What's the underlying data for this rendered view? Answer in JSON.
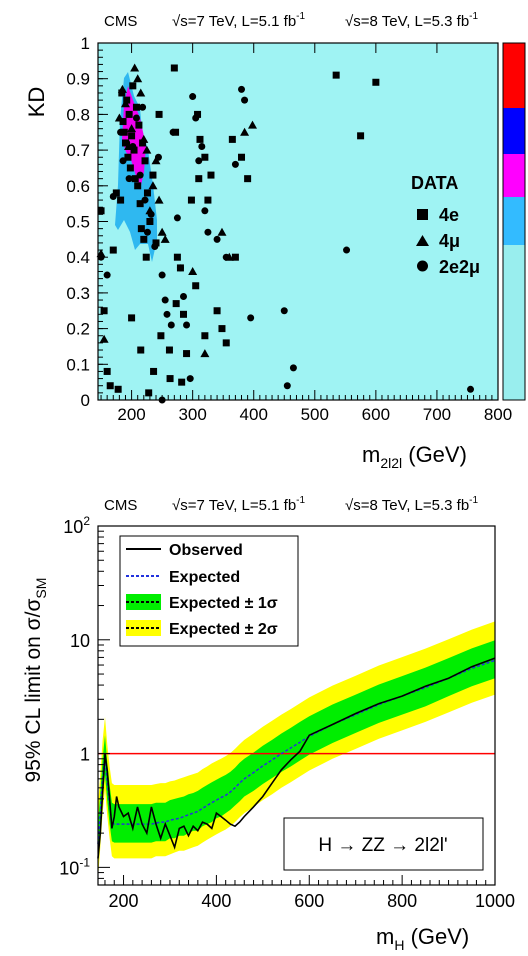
{
  "charts": [
    {
      "header": {
        "experiment": "CMS",
        "sqrt_s_7": "√s=7 TeV, L=5.1 fb",
        "sup_7": "-1",
        "sqrt_s_8": "√s=8 TeV, L=5.3 fb",
        "sup_8": "-1"
      },
      "ylabel": "KD",
      "xlabel_main": "m",
      "xlabel_sub": "2l2l",
      "xlabel_unit": " (GeV)",
      "x_ticks": [
        "200",
        "300",
        "400",
        "500",
        "600",
        "700",
        "800"
      ],
      "y_ticks": [
        "0",
        "0.1",
        "0.2",
        "0.3",
        "0.4",
        "0.5",
        "0.6",
        "0.7",
        "0.8",
        "0.9",
        "1"
      ],
      "legend_title": "DATA",
      "legend_items": [
        {
          "label": "4e",
          "marker": "square"
        },
        {
          "label": "4μ",
          "marker": "triangle"
        },
        {
          "label": "2e2μ",
          "marker": "circle"
        }
      ],
      "colors": {
        "background": "#9FF3F3",
        "band_outer": "#2FB8F0",
        "band_inner": "#F000F0",
        "colorbar": [
          "#FF0000",
          "#0000FF",
          "#FF00FF",
          "#33BBFF",
          "#99EEEE"
        ]
      }
    },
    {
      "header": {
        "experiment": "CMS",
        "sqrt_s_7": "√s=7 TeV, L=5.1 fb",
        "sup_7": "-1",
        "sqrt_s_8": "√s=8 TeV, L=5.3 fb",
        "sup_8": "-1"
      },
      "ylabel_main": "95% CL limit on σ/σ",
      "ylabel_sub": "SM",
      "xlabel_main": "m",
      "xlabel_sub": "H",
      "xlabel_unit": " (GeV)",
      "x_ticks": [
        "200",
        "400",
        "600",
        "800",
        "1000"
      ],
      "y_ticks": [
        {
          "base": "10",
          "exp": "-1"
        },
        {
          "base": "1",
          "exp": ""
        },
        {
          "base": "10",
          "exp": ""
        },
        {
          "base": "10",
          "exp": "2"
        }
      ],
      "legend_items": [
        {
          "label": "Observed",
          "style": "observed"
        },
        {
          "label": "Expected",
          "style": "expected"
        },
        {
          "label": "Expected ± 1σ",
          "style": "band1"
        },
        {
          "label": "Expected ± 2σ",
          "style": "band2"
        }
      ],
      "annotation": "H → ZZ → 2l2l'",
      "colors": {
        "observed": "#000000",
        "expected": "#2233DD",
        "band1": "#00EE00",
        "band2": "#FFFF00",
        "sm_line": "#FF0000"
      }
    }
  ],
  "chart_data": [
    {
      "type": "scatter",
      "title": "",
      "xlabel": "m_2l2l (GeV)",
      "ylabel": "KD",
      "xlim": [
        145,
        800
      ],
      "ylim": [
        0,
        1
      ],
      "grid": false,
      "legend_placement": "right",
      "series": [
        {
          "name": "4e",
          "marker": "square",
          "points": [
            [
              170,
              0.42
            ],
            [
              175,
              0.58
            ],
            [
              182,
              0.56
            ],
            [
              184,
              0.86
            ],
            [
              186,
              0.78
            ],
            [
              188,
              0.75
            ],
            [
              190,
              0.72
            ],
            [
              192,
              0.84
            ],
            [
              194,
              0.68
            ],
            [
              196,
              0.8
            ],
            [
              198,
              0.65
            ],
            [
              200,
              0.74
            ],
            [
              202,
              0.88
            ],
            [
              204,
              0.7
            ],
            [
              206,
              0.62
            ],
            [
              208,
              0.82
            ],
            [
              210,
              0.6
            ],
            [
              212,
              0.77
            ],
            [
              214,
              0.55
            ],
            [
              216,
              0.48
            ],
            [
              218,
              0.72
            ],
            [
              220,
              0.45
            ],
            [
              222,
              0.67
            ],
            [
              224,
              0.4
            ],
            [
              226,
              0.58
            ],
            [
              230,
              0.5
            ],
            [
              235,
              0.63
            ],
            [
              240,
              0.44
            ],
            [
              245,
              0.8
            ],
            [
              150,
              0.53
            ],
            [
              155,
              0.25
            ],
            [
              160,
              0.08
            ],
            [
              165,
              0.04
            ],
            [
              178,
              0.03
            ],
            [
              200,
              0.23
            ],
            [
              215,
              0.14
            ],
            [
              228,
              0.02
            ],
            [
              236,
              0.08
            ],
            [
              248,
              0.18
            ],
            [
              262,
              0.14
            ],
            [
              270,
              0.93
            ],
            [
              272,
              0.75
            ],
            [
              275,
              0.4
            ],
            [
              280,
              0.37
            ],
            [
              285,
              0.24
            ],
            [
              290,
              0.13
            ],
            [
              298,
              0.56
            ],
            [
              305,
              0.32
            ],
            [
              308,
              0.8
            ],
            [
              312,
              0.73
            ],
            [
              320,
              0.68
            ],
            [
              325,
              0.56
            ],
            [
              330,
              0.63
            ],
            [
              340,
              0.25
            ],
            [
              348,
              0.2
            ],
            [
              355,
              0.16
            ],
            [
              365,
              0.73
            ],
            [
              370,
              0.4
            ],
            [
              380,
              0.68
            ],
            [
              390,
              0.62
            ],
            [
              535,
              0.91
            ],
            [
              575,
              0.74
            ],
            [
              600,
              0.89
            ],
            [
              273,
              0.27
            ],
            [
              282,
              0.05
            ],
            [
              263,
              0.06
            ],
            [
              320,
              0.18
            ],
            [
              310,
              0.62
            ]
          ]
        },
        {
          "name": "4μ",
          "marker": "triangle",
          "points": [
            [
              150,
              0.41
            ],
            [
              155,
              0.17
            ],
            [
              180,
              0.79
            ],
            [
              185,
              0.87
            ],
            [
              190,
              0.83
            ],
            [
              195,
              0.71
            ],
            [
              200,
              0.76
            ],
            [
              205,
              0.93
            ],
            [
              210,
              0.9
            ],
            [
              215,
              0.86
            ],
            [
              220,
              0.73
            ],
            [
              225,
              0.7
            ],
            [
              230,
              0.53
            ],
            [
              235,
              0.6
            ],
            [
              240,
              0.67
            ],
            [
              245,
              0.56
            ],
            [
              250,
              0.47
            ],
            [
              255,
              0.45
            ],
            [
              300,
              0.36
            ],
            [
              320,
              0.13
            ],
            [
              348,
              0.47
            ],
            [
              360,
              0.4
            ],
            [
              385,
              0.75
            ],
            [
              398,
              0.77
            ]
          ]
        },
        {
          "name": "2e2μ",
          "marker": "circle",
          "points": [
            [
              150,
              0.4
            ],
            [
              160,
              0.35
            ],
            [
              170,
              0.57
            ],
            [
              182,
              0.75
            ],
            [
              186,
              0.67
            ],
            [
              192,
              0.72
            ],
            [
              196,
              0.62
            ],
            [
              202,
              0.71
            ],
            [
              208,
              0.79
            ],
            [
              214,
              0.63
            ],
            [
              218,
              0.82
            ],
            [
              222,
              0.56
            ],
            [
              226,
              0.47
            ],
            [
              232,
              0.52
            ],
            [
              238,
              0.43
            ],
            [
              244,
              0.68
            ],
            [
              250,
              0.35
            ],
            [
              255,
              0.28
            ],
            [
              258,
              0.24
            ],
            [
              265,
              0.21
            ],
            [
              268,
              0.75
            ],
            [
              275,
              0.51
            ],
            [
              280,
              0.37
            ],
            [
              285,
              0.29
            ],
            [
              290,
              0.21
            ],
            [
              296,
              0.06
            ],
            [
              300,
              0.85
            ],
            [
              305,
              0.79
            ],
            [
              310,
              0.67
            ],
            [
              315,
              0.71
            ],
            [
              320,
              0.53
            ],
            [
              325,
              0.47
            ],
            [
              340,
              0.45
            ],
            [
              355,
              0.4
            ],
            [
              370,
              0.66
            ],
            [
              380,
              0.87
            ],
            [
              385,
              0.84
            ],
            [
              395,
              0.23
            ],
            [
              450,
              0.25
            ],
            [
              455,
              0.04
            ],
            [
              465,
              0.09
            ],
            [
              552,
              0.42
            ],
            [
              755,
              0.03
            ],
            [
              250,
              0.0
            ]
          ]
        }
      ]
    },
    {
      "type": "line",
      "title": "",
      "xlabel": "m_H (GeV)",
      "ylabel": "95% CL limit on σ/σ_SM",
      "xlim": [
        145,
        1000
      ],
      "ylim": [
        0.07,
        100
      ],
      "yscale": "log",
      "grid": false,
      "legend_placement": "top-left",
      "x": [
        145,
        150,
        155,
        160,
        165,
        170,
        175,
        180,
        185,
        190,
        200,
        210,
        220,
        230,
        240,
        250,
        260,
        270,
        280,
        290,
        300,
        310,
        320,
        330,
        340,
        350,
        360,
        370,
        380,
        390,
        400,
        410,
        420,
        430,
        440,
        450,
        460,
        480,
        500,
        520,
        540,
        560,
        580,
        600,
        650,
        700,
        750,
        800,
        850,
        900,
        950,
        1000
      ],
      "series": [
        {
          "name": "Observed",
          "values": [
            0.12,
            0.2,
            0.45,
            1.0,
            0.7,
            0.4,
            0.22,
            0.28,
            0.42,
            0.34,
            0.28,
            0.3,
            0.22,
            0.34,
            0.24,
            0.2,
            0.34,
            0.24,
            0.18,
            0.24,
            0.19,
            0.15,
            0.22,
            0.23,
            0.19,
            0.23,
            0.21,
            0.25,
            0.24,
            0.22,
            0.3,
            0.28,
            0.26,
            0.24,
            0.23,
            0.25,
            0.28,
            0.34,
            0.42,
            0.55,
            0.72,
            0.88,
            1.05,
            1.45,
            1.8,
            2.25,
            2.75,
            3.2,
            3.9,
            4.6,
            5.8,
            6.9
          ]
        },
        {
          "name": "Expected",
          "values": [
            0.16,
            0.3,
            0.6,
            0.95,
            0.55,
            0.35,
            0.25,
            0.24,
            0.24,
            0.24,
            0.24,
            0.24,
            0.24,
            0.24,
            0.24,
            0.24,
            0.24,
            0.245,
            0.25,
            0.25,
            0.26,
            0.265,
            0.27,
            0.28,
            0.29,
            0.3,
            0.31,
            0.33,
            0.35,
            0.37,
            0.39,
            0.41,
            0.43,
            0.46,
            0.5,
            0.55,
            0.6,
            0.68,
            0.78,
            0.88,
            1.0,
            1.12,
            1.26,
            1.42,
            1.8,
            2.2,
            2.7,
            3.2,
            3.8,
            4.6,
            5.6,
            6.6
          ]
        },
        {
          "name": "Expected ± 1σ",
          "low": [
            0.11,
            0.2,
            0.4,
            0.65,
            0.38,
            0.24,
            0.17,
            0.165,
            0.165,
            0.165,
            0.165,
            0.165,
            0.165,
            0.165,
            0.165,
            0.165,
            0.165,
            0.17,
            0.17,
            0.17,
            0.18,
            0.18,
            0.19,
            0.19,
            0.2,
            0.21,
            0.21,
            0.23,
            0.24,
            0.25,
            0.27,
            0.28,
            0.3,
            0.32,
            0.35,
            0.38,
            0.42,
            0.47,
            0.54,
            0.61,
            0.69,
            0.77,
            0.87,
            0.98,
            1.24,
            1.52,
            1.86,
            2.2,
            2.6,
            3.2,
            3.9,
            4.6
          ],
          "high": [
            0.24,
            0.45,
            0.9,
            1.45,
            0.83,
            0.53,
            0.37,
            0.36,
            0.36,
            0.36,
            0.36,
            0.36,
            0.36,
            0.36,
            0.36,
            0.36,
            0.36,
            0.37,
            0.37,
            0.37,
            0.39,
            0.4,
            0.41,
            0.42,
            0.44,
            0.45,
            0.47,
            0.5,
            0.53,
            0.56,
            0.59,
            0.62,
            0.65,
            0.69,
            0.75,
            0.83,
            0.9,
            1.02,
            1.17,
            1.32,
            1.5,
            1.68,
            1.9,
            2.13,
            2.7,
            3.3,
            4.05,
            4.8,
            5.7,
            6.9,
            8.4,
            9.9
          ]
        },
        {
          "name": "Expected ± 2σ",
          "low": [
            0.08,
            0.15,
            0.3,
            0.48,
            0.28,
            0.18,
            0.125,
            0.12,
            0.12,
            0.12,
            0.12,
            0.12,
            0.12,
            0.12,
            0.12,
            0.12,
            0.12,
            0.125,
            0.125,
            0.125,
            0.13,
            0.135,
            0.14,
            0.14,
            0.145,
            0.15,
            0.155,
            0.165,
            0.175,
            0.185,
            0.195,
            0.205,
            0.215,
            0.23,
            0.25,
            0.275,
            0.3,
            0.34,
            0.39,
            0.44,
            0.5,
            0.56,
            0.63,
            0.71,
            0.9,
            1.1,
            1.35,
            1.6,
            1.9,
            2.3,
            2.8,
            3.3
          ],
          "high": [
            0.35,
            0.66,
            1.3,
            2.1,
            1.2,
            0.77,
            0.55,
            0.53,
            0.53,
            0.53,
            0.53,
            0.53,
            0.53,
            0.53,
            0.53,
            0.53,
            0.53,
            0.54,
            0.55,
            0.55,
            0.57,
            0.58,
            0.6,
            0.62,
            0.64,
            0.66,
            0.68,
            0.73,
            0.77,
            0.82,
            0.86,
            0.9,
            0.95,
            1.01,
            1.1,
            1.21,
            1.32,
            1.5,
            1.72,
            1.94,
            2.2,
            2.46,
            2.77,
            3.12,
            3.96,
            4.84,
            5.94,
            7.04,
            8.36,
            10.1,
            12.3,
            14.5
          ]
        }
      ],
      "reference_line": {
        "y": 1.0
      }
    }
  ]
}
